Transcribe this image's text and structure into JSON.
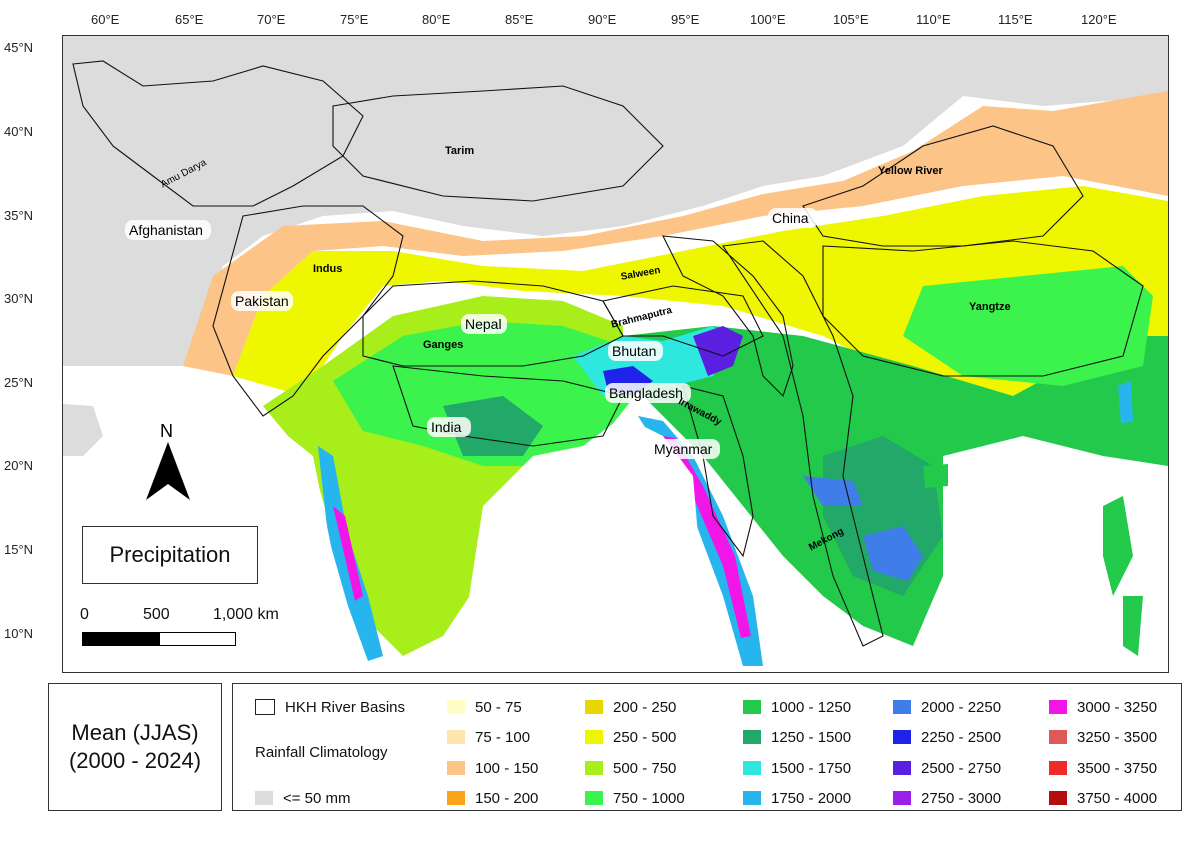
{
  "map": {
    "title": "Precipitation",
    "north_label": "N",
    "scale": {
      "labels": [
        "0",
        "500",
        "1,000 km"
      ]
    },
    "lon_ticks": [
      "60°E",
      "65°E",
      "70°E",
      "75°E",
      "80°E",
      "85°E",
      "90°E",
      "95°E",
      "100°E",
      "105°E",
      "110°E",
      "115°E",
      "120°E"
    ],
    "lat_ticks": [
      "45°N",
      "40°N",
      "35°N",
      "30°N",
      "25°N",
      "20°N",
      "15°N",
      "10°N"
    ],
    "places": {
      "countries": [
        "Afghanistan",
        "Pakistan",
        "Nepal",
        "Bhutan",
        "Bangladesh",
        "India",
        "Myanmar",
        "China"
      ],
      "basins": [
        "Amu Darya",
        "Tarim",
        "Yellow River",
        "Indus",
        "Salween",
        "Brahmaputra",
        "Yangtze",
        "Ganges",
        "Irrawaddy",
        "Mekong"
      ]
    }
  },
  "legend": {
    "period": [
      "Mean (JJAS)",
      "(2000 - 2024)"
    ],
    "basin_label": "HKH River Basins",
    "climatology_label": "Rainfall Climatology",
    "dry_label": "<= 50 mm",
    "dry_color": "#dcdcdc",
    "classes": [
      {
        "label": "50 - 75",
        "color": "#fffcc4"
      },
      {
        "label": "75 - 100",
        "color": "#fde6ad"
      },
      {
        "label": "100 - 150",
        "color": "#fcc487"
      },
      {
        "label": "150 - 200",
        "color": "#f9a31b"
      },
      {
        "label": "200 - 250",
        "color": "#e8d600"
      },
      {
        "label": "250 - 500",
        "color": "#eef600"
      },
      {
        "label": "500 - 750",
        "color": "#a7ee1a"
      },
      {
        "label": "750 - 1000",
        "color": "#3cf24c"
      },
      {
        "label": "1000 - 1250",
        "color": "#22c94a"
      },
      {
        "label": "1250 - 1500",
        "color": "#22a869"
      },
      {
        "label": "1500 - 1750",
        "color": "#2ee8e0"
      },
      {
        "label": "1750 - 2000",
        "color": "#27b5ee"
      },
      {
        "label": "2000 - 2250",
        "color": "#3f7de8"
      },
      {
        "label": "2250 - 2500",
        "color": "#1f22e8"
      },
      {
        "label": "2500 - 2750",
        "color": "#5a1fe0"
      },
      {
        "label": "2750 - 3000",
        "color": "#9a22e8"
      },
      {
        "label": "3000 - 3250",
        "color": "#f215e8"
      },
      {
        "label": "3250 - 3500",
        "color": "#de5a5a"
      },
      {
        "label": "3500 - 3750",
        "color": "#ee2a2a"
      },
      {
        "label": "3750 - 4000",
        "color": "#b40d0d"
      }
    ]
  }
}
